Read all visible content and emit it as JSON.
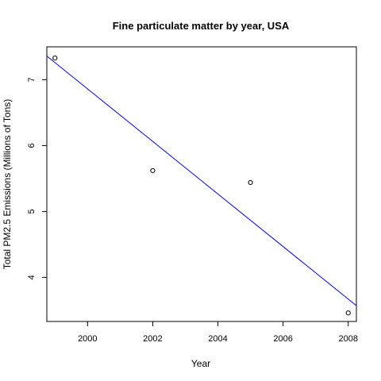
{
  "chart_data": {
    "type": "scatter",
    "title": "Fine particulate matter by year, USA",
    "xlabel": "Year",
    "ylabel": "Total PM2.5 Emissions (Millions of Tons)",
    "xlim": [
      1998.75,
      2008.25
    ],
    "ylim": [
      3.33,
      7.5
    ],
    "x_ticks": [
      2000,
      2002,
      2004,
      2006,
      2008
    ],
    "y_ticks": [
      4,
      5,
      6,
      7
    ],
    "grid": false,
    "points": {
      "x": [
        1999,
        2002,
        2005,
        2008
      ],
      "y": [
        7.33,
        5.62,
        5.44,
        3.46
      ]
    },
    "trend_line": {
      "x": [
        1998.75,
        2008.25
      ],
      "y": [
        7.36,
        3.57
      ],
      "color": "#0000ff"
    },
    "point_color": "#000000"
  }
}
